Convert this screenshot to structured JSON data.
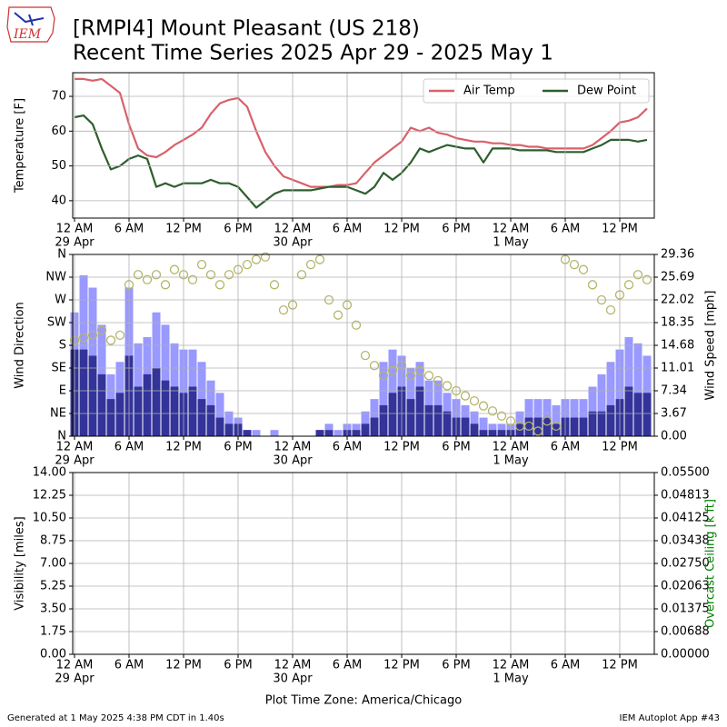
{
  "header": {
    "logo": "IEM",
    "title": "[RMPI4] Mount Pleasant (US 218)",
    "subtitle": "Recent Time Series 2025 Apr 29 - 2025 May 1"
  },
  "footer": {
    "left": "Generated at 1 May 2025 4:38 PM CDT in 1.40s",
    "right": "IEM Autoplot App #43"
  },
  "chart_data": [
    {
      "type": "line",
      "ylabel": "Temperature [F]",
      "grid": true,
      "legend": "upper right",
      "xlim": [
        -0.2,
        63.8
      ],
      "xticks": [
        {
          "value": 0,
          "label": "12 AM"
        },
        {
          "value": 6,
          "label": "6 AM"
        },
        {
          "value": 12,
          "label": "12 PM"
        },
        {
          "value": 18,
          "label": "6 PM"
        },
        {
          "value": 24,
          "label": "12 AM"
        },
        {
          "value": 30,
          "label": "6 AM"
        },
        {
          "value": 36,
          "label": "12 PM"
        },
        {
          "value": 42,
          "label": "6 PM"
        },
        {
          "value": 48,
          "label": "12 AM"
        },
        {
          "value": 54,
          "label": "6 AM"
        },
        {
          "value": 60,
          "label": "12 PM"
        }
      ],
      "xtick_dates": [
        {
          "value": 0,
          "label": "29 Apr"
        },
        {
          "value": 24,
          "label": "30 Apr"
        },
        {
          "value": 48,
          "label": "1 May"
        }
      ],
      "ylim": [
        35,
        76.8
      ],
      "yticks": [
        40,
        50,
        60,
        70
      ],
      "x": [
        0,
        1,
        2,
        3,
        4,
        5,
        6,
        7,
        8,
        9,
        10,
        11,
        12,
        13,
        14,
        15,
        16,
        17,
        18,
        19,
        20,
        21,
        22,
        23,
        24,
        25,
        26,
        27,
        28,
        29,
        30,
        31,
        32,
        33,
        34,
        35,
        36,
        37,
        38,
        39,
        40,
        41,
        42,
        43,
        44,
        45,
        46,
        47,
        48,
        49,
        50,
        51,
        52,
        53,
        54,
        55,
        56,
        57,
        58,
        59,
        60,
        61,
        62,
        63
      ],
      "series": [
        {
          "name": "Air Temp",
          "color": "#d9606a",
          "values": [
            75,
            75,
            74.5,
            75,
            73,
            71,
            62,
            55,
            53,
            52.5,
            54,
            56,
            57.5,
            59,
            61,
            65,
            68,
            69,
            69.5,
            67,
            60,
            54,
            50,
            47,
            46,
            45,
            44,
            44,
            44,
            44.5,
            44.5,
            45,
            48,
            51,
            53,
            55,
            57,
            61,
            60,
            61,
            59.5,
            59,
            58,
            57.5,
            57,
            57,
            56.5,
            56.5,
            56,
            56,
            55.5,
            55.5,
            55,
            55,
            55,
            55,
            55,
            56,
            58,
            60,
            62.5,
            63,
            64,
            66.5
          ]
        },
        {
          "name": "Dew Point",
          "color": "#2e5e2e",
          "values": [
            64,
            64.5,
            62,
            55,
            49,
            50,
            52,
            53,
            52,
            44,
            45,
            44,
            45,
            45,
            45,
            46,
            45,
            45,
            44,
            41,
            38,
            40,
            42,
            43,
            43,
            43,
            43,
            43.5,
            44,
            44,
            44,
            43,
            42,
            44,
            48,
            46,
            48,
            51,
            55,
            54,
            55,
            56,
            55.5,
            55,
            55,
            51,
            55,
            55,
            55,
            54.5,
            54.5,
            54.5,
            54.5,
            54,
            54,
            54,
            54,
            55,
            56,
            57.5,
            57.5,
            57.5,
            57,
            57.5
          ]
        }
      ]
    },
    {
      "type": "combo",
      "ylabel": "Wind Direction",
      "y2label": "Wind Speed [mph]",
      "grid": true,
      "xlim": [
        -0.2,
        63.8
      ],
      "xticks": [
        {
          "value": 0,
          "label": "12 AM"
        },
        {
          "value": 6,
          "label": "6 AM"
        },
        {
          "value": 12,
          "label": "12 PM"
        },
        {
          "value": 18,
          "label": "6 PM"
        },
        {
          "value": 24,
          "label": "12 AM"
        },
        {
          "value": 30,
          "label": "6 AM"
        },
        {
          "value": 36,
          "label": "12 PM"
        },
        {
          "value": 42,
          "label": "6 PM"
        },
        {
          "value": 48,
          "label": "12 AM"
        },
        {
          "value": 54,
          "label": "6 AM"
        },
        {
          "value": 60,
          "label": "12 PM"
        }
      ],
      "xtick_dates": [
        {
          "value": 0,
          "label": "29 Apr"
        },
        {
          "value": 24,
          "label": "30 Apr"
        },
        {
          "value": 48,
          "label": "1 May"
        }
      ],
      "ylim": [
        0,
        360
      ],
      "yticks": [
        {
          "value": 0,
          "label": "N"
        },
        {
          "value": 45,
          "label": "NE"
        },
        {
          "value": 90,
          "label": "E"
        },
        {
          "value": 135,
          "label": "SE"
        },
        {
          "value": 180,
          "label": "S"
        },
        {
          "value": 225,
          "label": "SW"
        },
        {
          "value": 270,
          "label": "W"
        },
        {
          "value": 315,
          "label": "NW"
        },
        {
          "value": 360,
          "label": "N"
        }
      ],
      "y2lim": [
        0,
        29.36
      ],
      "y2ticks": [
        {
          "value": 0,
          "label": "0.00"
        },
        3.67,
        7.34,
        11.01,
        14.68,
        18.35,
        22.02,
        25.69,
        29.36
      ],
      "x": [
        0,
        1,
        2,
        3,
        4,
        5,
        6,
        7,
        8,
        9,
        10,
        11,
        12,
        13,
        14,
        15,
        16,
        17,
        18,
        19,
        20,
        21,
        22,
        23,
        24,
        25,
        26,
        27,
        28,
        29,
        30,
        31,
        32,
        33,
        34,
        35,
        36,
        37,
        38,
        39,
        40,
        41,
        42,
        43,
        44,
        45,
        46,
        47,
        48,
        49,
        50,
        51,
        52,
        53,
        54,
        55,
        56,
        57,
        58,
        59,
        60,
        61,
        62,
        63
      ],
      "series": [
        {
          "type": "bar",
          "axis": "y2",
          "color": "#9999ff",
          "values": [
            20,
            26,
            24,
            18,
            10,
            12,
            24,
            15,
            16,
            20,
            18,
            15,
            14,
            14,
            12,
            9,
            7,
            4,
            3,
            1,
            1,
            0,
            1,
            0,
            0,
            0,
            0,
            1,
            2,
            1,
            2,
            2,
            4,
            6,
            12,
            14,
            13,
            11,
            12,
            9,
            9,
            7,
            6,
            5,
            4,
            3,
            2,
            2,
            2,
            4,
            6,
            6,
            6,
            5,
            6,
            6,
            6,
            8,
            10,
            12,
            14,
            16,
            15,
            13
          ]
        },
        {
          "type": "bar",
          "axis": "y2",
          "color": "#33339a",
          "values": [
            14,
            14,
            13,
            10,
            6,
            7,
            13,
            8,
            10,
            11,
            9,
            8,
            7,
            8,
            6,
            5,
            3,
            2,
            2,
            1,
            0,
            0,
            0,
            0,
            0,
            0,
            0,
            1,
            1,
            0,
            1,
            1,
            2,
            3,
            5,
            7,
            8,
            6,
            8,
            5,
            5,
            4,
            3,
            3,
            2,
            1,
            1,
            1,
            1,
            2,
            3,
            3,
            3,
            2,
            3,
            3,
            3,
            4,
            4,
            5,
            6,
            8,
            7,
            7
          ]
        },
        {
          "type": "scatter",
          "color": "#b5b56a",
          "values": [
            190,
            195,
            200,
            210,
            190,
            200,
            300,
            320,
            310,
            320,
            300,
            330,
            320,
            310,
            340,
            320,
            300,
            320,
            330,
            340,
            350,
            355,
            300,
            250,
            260,
            320,
            340,
            350,
            270,
            240,
            260,
            220,
            160,
            140,
            120,
            130,
            140,
            120,
            130,
            120,
            110,
            100,
            90,
            80,
            70,
            60,
            50,
            40,
            30,
            20,
            20,
            10,
            30,
            20,
            350,
            340,
            330,
            300,
            270,
            250,
            280,
            300,
            320,
            310
          ]
        }
      ]
    },
    {
      "type": "line",
      "ylabel": "Visibility [miles]",
      "y2label": "Overcast Ceiling [k ft]",
      "y2label_color": "#008000",
      "xlabel": "Plot Time Zone: America/Chicago",
      "grid": true,
      "xlim": [
        -0.2,
        63.8
      ],
      "xticks": [
        {
          "value": 0,
          "label": "12 AM"
        },
        {
          "value": 6,
          "label": "6 AM"
        },
        {
          "value": 12,
          "label": "12 PM"
        },
        {
          "value": 18,
          "label": "6 PM"
        },
        {
          "value": 24,
          "label": "12 AM"
        },
        {
          "value": 30,
          "label": "6 AM"
        },
        {
          "value": 36,
          "label": "12 PM"
        },
        {
          "value": 42,
          "label": "6 PM"
        },
        {
          "value": 48,
          "label": "12 AM"
        },
        {
          "value": 54,
          "label": "6 AM"
        },
        {
          "value": 60,
          "label": "12 PM"
        }
      ],
      "xtick_dates": [
        {
          "value": 0,
          "label": "29 Apr"
        },
        {
          "value": 24,
          "label": "30 Apr"
        },
        {
          "value": 48,
          "label": "1 May"
        }
      ],
      "ylim": [
        0,
        14
      ],
      "yticks": [
        {
          "value": 0,
          "label": "0.00"
        },
        1.75,
        {
          "value": 3.5,
          "label": "3.50"
        },
        5.25,
        {
          "value": 7,
          "label": "7.00"
        },
        8.75,
        {
          "value": 10.5,
          "label": "10.50"
        },
        12.25,
        {
          "value": 14,
          "label": "14.00"
        }
      ],
      "y2lim": [
        0,
        0.055
      ],
      "y2ticks": [
        {
          "value": 0,
          "label": "0.00000"
        },
        0.00688,
        0.01375,
        0.02063,
        {
          "value": 0.0275,
          "label": "0.02750"
        },
        0.03438,
        0.04125,
        0.04813,
        {
          "value": 0.055,
          "label": "0.05500"
        }
      ],
      "series": []
    }
  ]
}
